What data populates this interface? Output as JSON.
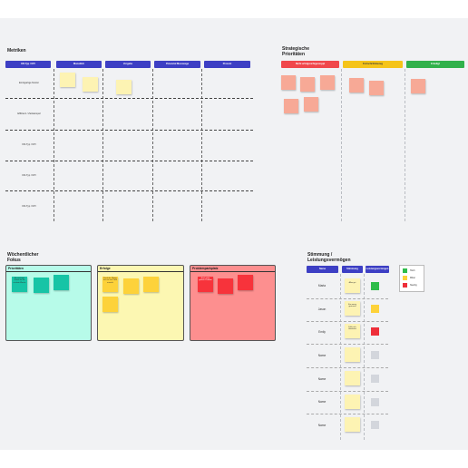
{
  "colors": {
    "header_blue": "#3d3fc4",
    "strategic_red": "#f0474b",
    "strategic_yellow": "#f5c419",
    "strategic_green": "#31b14b",
    "focus_teal": "#b7fbe9",
    "focus_yellow": "#fcf7b2",
    "focus_red": "#fd8f8f",
    "mood_green": "#2fbd4b",
    "mood_yellow": "#fdd23a",
    "mood_red": "#ee2f3a",
    "mood_gray": "#d3d6dc"
  },
  "metrics": {
    "title": "Metriken",
    "headers": [
      "KR-Typ / KPI",
      "Monatlich",
      "Vorgabe",
      "Potenzial Messwege",
      "Prozent"
    ],
    "rows": [
      "Einzigartige Nutzer",
      "Effizienz / Zeitstempel",
      "KR-Typ / KPI",
      "KR-Typ / KPI",
      "KR-Typ / KPI"
    ]
  },
  "strategic": {
    "title_line1": "Strategische",
    "title_line2": "Prioritäten",
    "headers": [
      "Nicht erfolgreich/gestoppt",
      "Fortschrittsbezug",
      "Erledigt"
    ]
  },
  "focus": {
    "title_line1": "Wöchentlicher",
    "title_line2": "Fokus",
    "panels": [
      {
        "title": "Prioritäten",
        "note": "Ein wichtiger Schritt für die nächste Woche"
      },
      {
        "title": "Erfolge",
        "note": "Dank der Übung hat sie sich Ziele erreicht"
      },
      {
        "title": "Problemparkplatz",
        "note": "Noch nicht gelöste Problem"
      }
    ]
  },
  "mood": {
    "title_line1": "Stimmung /",
    "title_line2": "Leistungsvermögen",
    "headers": [
      "Name",
      "Stimmung",
      "Leistungsvermögen"
    ],
    "rows": [
      {
        "name": "Marta",
        "note": "Alles gut",
        "status": "green"
      },
      {
        "name": "Jason",
        "note": "Ein wenig gestresst",
        "status": "yellow"
      },
      {
        "name": "Emily",
        "note": "Fühlt sich überlastet",
        "status": "red"
      },
      {
        "name": "Name",
        "note": "",
        "status": "gray"
      },
      {
        "name": "Name",
        "note": "",
        "status": "gray"
      },
      {
        "name": "Name",
        "note": "",
        "status": "gray"
      },
      {
        "name": "Name",
        "note": "",
        "status": "gray"
      }
    ],
    "legend": [
      "Hoch",
      "Mittel",
      "Niedrig"
    ]
  }
}
